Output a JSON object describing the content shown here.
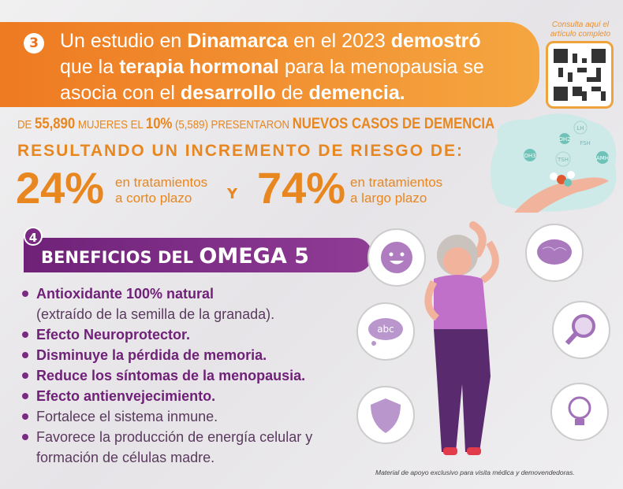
{
  "section3": {
    "number": "3",
    "line1_a": "Un estudio en ",
    "line1_b": "Dinamarca",
    "line1_c": " en el 2023 ",
    "line1_d": "demostró",
    "line2_a": "que la ",
    "line2_b": "terapia hormonal",
    "line2_c": " para la menopausia se",
    "line3_a": "asocia con el ",
    "line3_b": "desarrollo",
    "line3_c": " de ",
    "line3_d": "demencia."
  },
  "qr": {
    "caption": "Consulta aquí el artículo completo"
  },
  "stats": {
    "a": "DE ",
    "b": "55,890",
    "c": " MUJERES EL ",
    "d": "10%",
    "e": " (5,589) PRESENTARON ",
    "f": "NUEVOS CASOS DE DEMENCIA",
    "risk_heading": "RESULTANDO UN INCREMENTO DE RIESGO DE:",
    "short_pct": "24%",
    "short_l1": "en tratamientos",
    "short_l2": "a corto plazo",
    "and": "Y",
    "long_pct": "74%",
    "long_l1": "en tratamientos",
    "long_l2": "a largo plazo"
  },
  "hormones": [
    "LH",
    "OH2",
    "FSH",
    "OH3",
    "TSH",
    "AMH"
  ],
  "section4": {
    "number": "4",
    "title_a": "BENEFICIOS DEL ",
    "title_b": "OMEGA 5",
    "items": [
      "Antioxidante 100% natural",
      "(extraído de la semilla de la granada).",
      "Efecto Neuroprotector.",
      "Disminuye la pérdida de memoria.",
      "Reduce los síntomas de la menopausia.",
      "Efecto antienvejecimiento.",
      "Fortalece el sistema inmune.",
      "Favorece la producción de energía celular y",
      "formación de células madre."
    ]
  },
  "icons": {
    "speech": "abc"
  },
  "footer": "Material de apoyo exclusivo para visita médica y demovendedoras."
}
